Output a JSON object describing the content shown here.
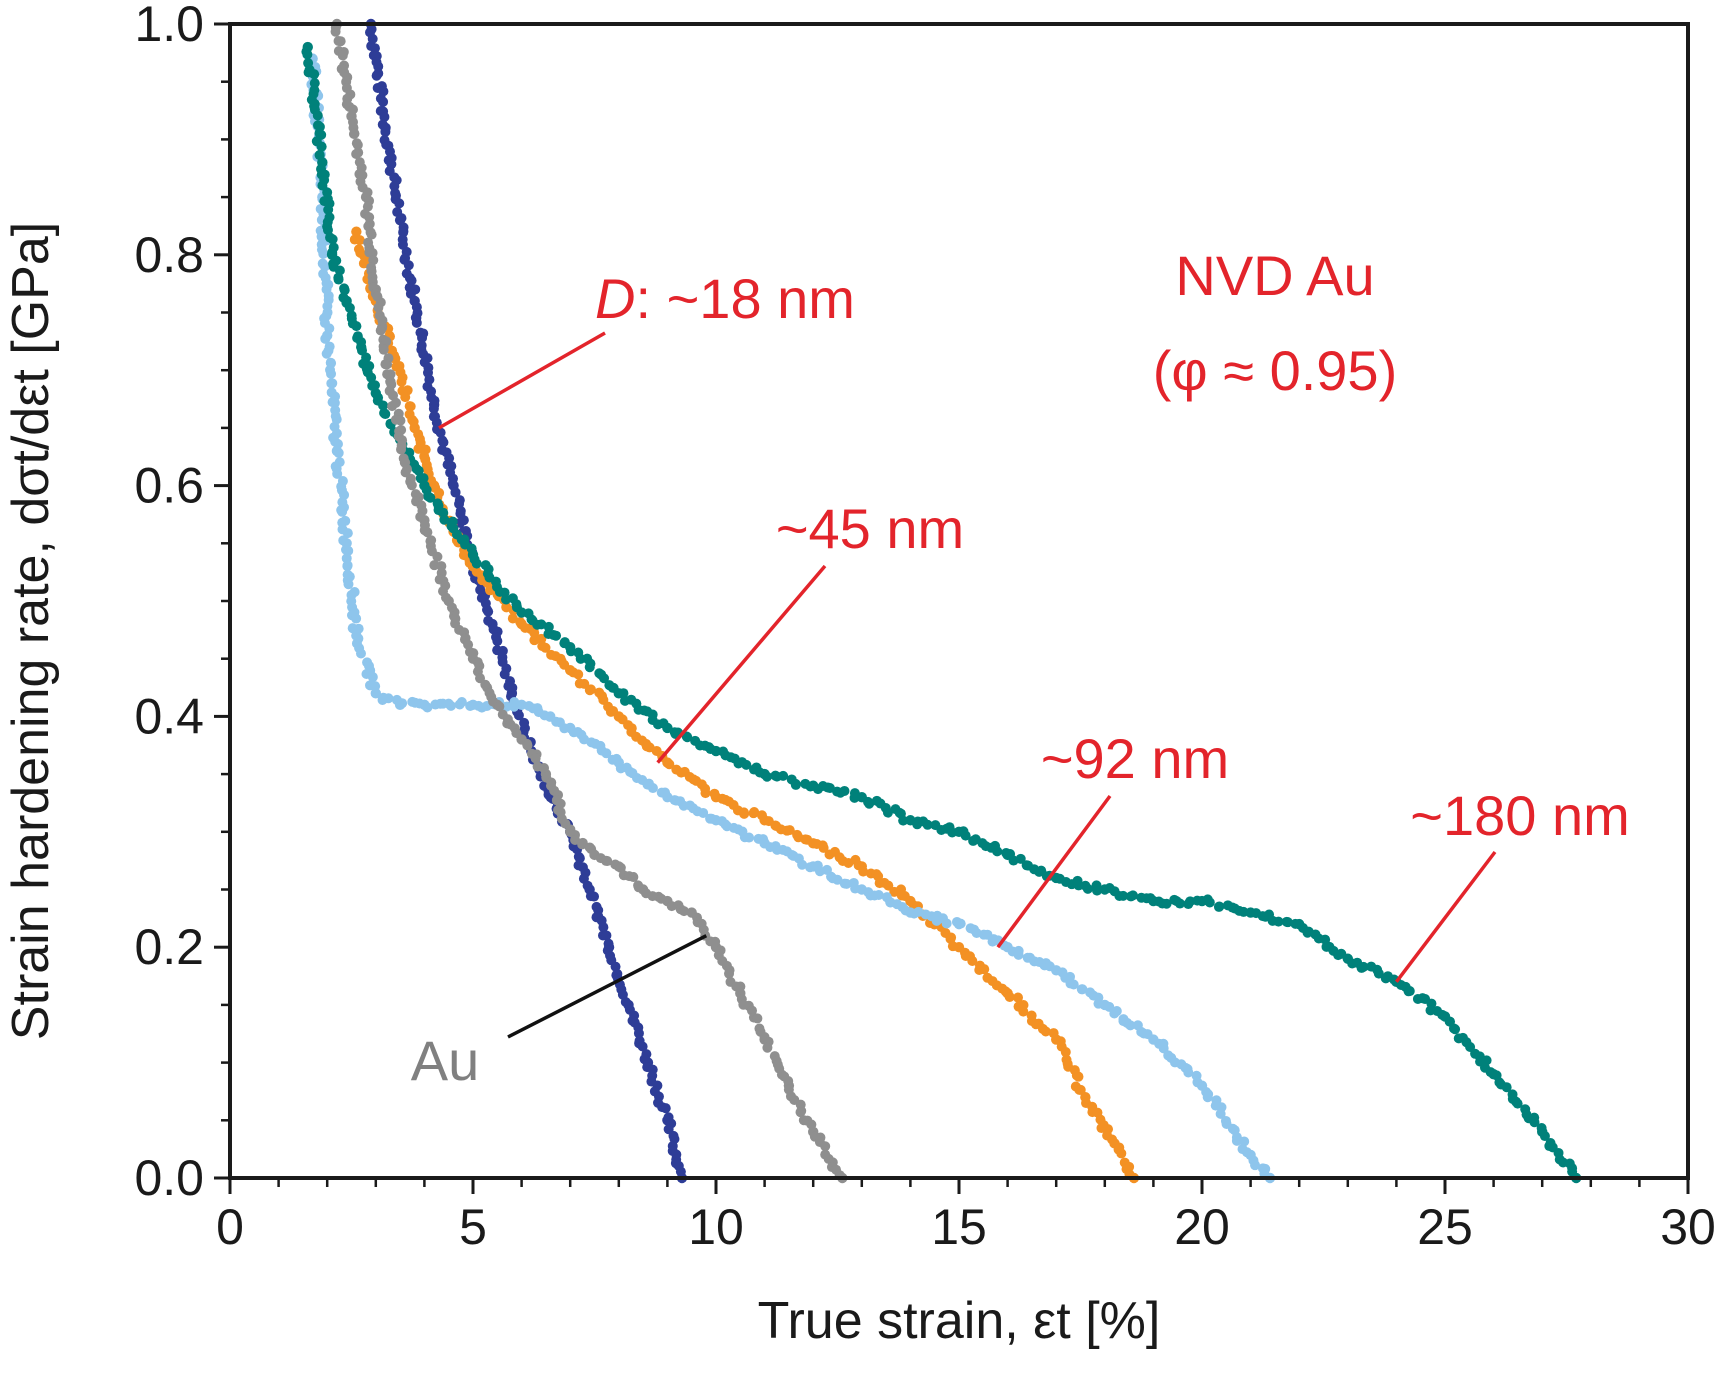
{
  "chart_data": {
    "type": "scatter",
    "xlabel": "True strain, εt  [%]",
    "ylabel": "Strain hardening rate, dσt/dεt  [GPa]",
    "xlim": [
      0,
      30
    ],
    "ylim": [
      0,
      1.0
    ],
    "xticks": [
      0,
      5,
      10,
      15,
      20,
      25,
      30
    ],
    "yticks": [
      0.0,
      0.2,
      0.4,
      0.6,
      0.8,
      1.0
    ],
    "x_tick_labels": [
      "0",
      "5",
      "10",
      "15",
      "20",
      "25",
      "30"
    ],
    "y_tick_labels": [
      "0.0",
      "0.2",
      "0.4",
      "0.6",
      "0.8",
      "1.0"
    ],
    "grid": false,
    "title_lines": [
      "NVD Au",
      "(φ ≈ 0.95)"
    ],
    "series": [
      {
        "name": "D: ~18 nm",
        "color": "#2e3d97",
        "x": [
          2.9,
          3.2,
          3.5,
          3.8,
          4.2,
          4.6,
          5.0,
          5.4,
          5.8,
          6.2,
          6.6,
          7.0,
          7.4,
          7.8,
          8.2,
          8.6,
          9.0,
          9.3
        ],
        "y": [
          1.0,
          0.91,
          0.83,
          0.76,
          0.67,
          0.6,
          0.53,
          0.48,
          0.42,
          0.37,
          0.33,
          0.3,
          0.25,
          0.2,
          0.15,
          0.1,
          0.05,
          0.0
        ]
      },
      {
        "name": "~45 nm",
        "color": "#f39124",
        "x": [
          2.6,
          3.0,
          3.4,
          3.8,
          4.2,
          4.6,
          5.0,
          6.0,
          7.0,
          8.0,
          9.0,
          10.0,
          11.0,
          12.0,
          13.0,
          14.0,
          15.0,
          16.0,
          17.0,
          17.6,
          18.2,
          18.6
        ],
        "y": [
          0.82,
          0.76,
          0.71,
          0.65,
          0.6,
          0.56,
          0.53,
          0.48,
          0.44,
          0.4,
          0.36,
          0.33,
          0.31,
          0.29,
          0.27,
          0.24,
          0.2,
          0.16,
          0.12,
          0.07,
          0.03,
          0.0
        ]
      },
      {
        "name": "~92 nm",
        "color": "#8ec5ec",
        "x": [
          1.7,
          1.9,
          2.0,
          2.2,
          2.4,
          2.6,
          3.0,
          3.5,
          4.0,
          5.0,
          6.0,
          7.0,
          8.0,
          9.0,
          10.0,
          11.0,
          12.0,
          13.0,
          14.0,
          15.0,
          16.0,
          17.0,
          18.0,
          19.0,
          20.0,
          21.0,
          21.4
        ],
        "y": [
          0.97,
          0.85,
          0.73,
          0.63,
          0.55,
          0.47,
          0.42,
          0.41,
          0.41,
          0.41,
          0.41,
          0.39,
          0.36,
          0.33,
          0.31,
          0.29,
          0.27,
          0.25,
          0.23,
          0.22,
          0.2,
          0.18,
          0.15,
          0.12,
          0.08,
          0.02,
          0.0
        ]
      },
      {
        "name": "~180 nm",
        "color": "#00817a",
        "x": [
          1.6,
          1.9,
          2.1,
          2.4,
          2.7,
          3.0,
          3.5,
          4.0,
          5.0,
          6.0,
          7.0,
          8.0,
          9.0,
          10.0,
          11.0,
          12.0,
          13.0,
          14.0,
          15.0,
          16.0,
          17.0,
          18.0,
          19.0,
          20.0,
          21.0,
          22.0,
          23.0,
          24.0,
          25.0,
          26.0,
          27.0,
          27.7
        ],
        "y": [
          0.98,
          0.88,
          0.8,
          0.76,
          0.72,
          0.68,
          0.64,
          0.6,
          0.54,
          0.49,
          0.46,
          0.42,
          0.39,
          0.37,
          0.35,
          0.34,
          0.33,
          0.31,
          0.3,
          0.28,
          0.26,
          0.25,
          0.24,
          0.24,
          0.23,
          0.22,
          0.19,
          0.17,
          0.14,
          0.09,
          0.04,
          0.0
        ]
      },
      {
        "name": "Au",
        "color": "#8f8f8f",
        "x": [
          2.2,
          2.5,
          2.8,
          3.0,
          3.3,
          3.6,
          4.0,
          4.5,
          5.0,
          5.5,
          6.0,
          6.5,
          7.0,
          7.5,
          8.0,
          8.5,
          9.0,
          9.5,
          10.0,
          10.5,
          11.0,
          11.5,
          12.0,
          12.6
        ],
        "y": [
          1.0,
          0.92,
          0.85,
          0.77,
          0.69,
          0.62,
          0.57,
          0.5,
          0.45,
          0.41,
          0.38,
          0.35,
          0.3,
          0.28,
          0.27,
          0.25,
          0.24,
          0.23,
          0.2,
          0.16,
          0.12,
          0.08,
          0.04,
          0.0
        ]
      }
    ],
    "annotations": [
      {
        "label_prefix": "D",
        "label_rest": ": ~18 nm",
        "color": "#e3242b",
        "point_to": [
          4.3,
          0.65
        ]
      },
      {
        "label": "~45 nm",
        "color": "#e3242b",
        "point_to": [
          8.8,
          0.36
        ]
      },
      {
        "label": "~92 nm",
        "color": "#e3242b",
        "point_to": [
          15.8,
          0.2
        ]
      },
      {
        "label": "~180 nm",
        "color": "#e3242b",
        "point_to": [
          24.0,
          0.17
        ]
      },
      {
        "label": "Au",
        "color": "#808080",
        "point_to": [
          9.8,
          0.21
        ]
      }
    ]
  }
}
